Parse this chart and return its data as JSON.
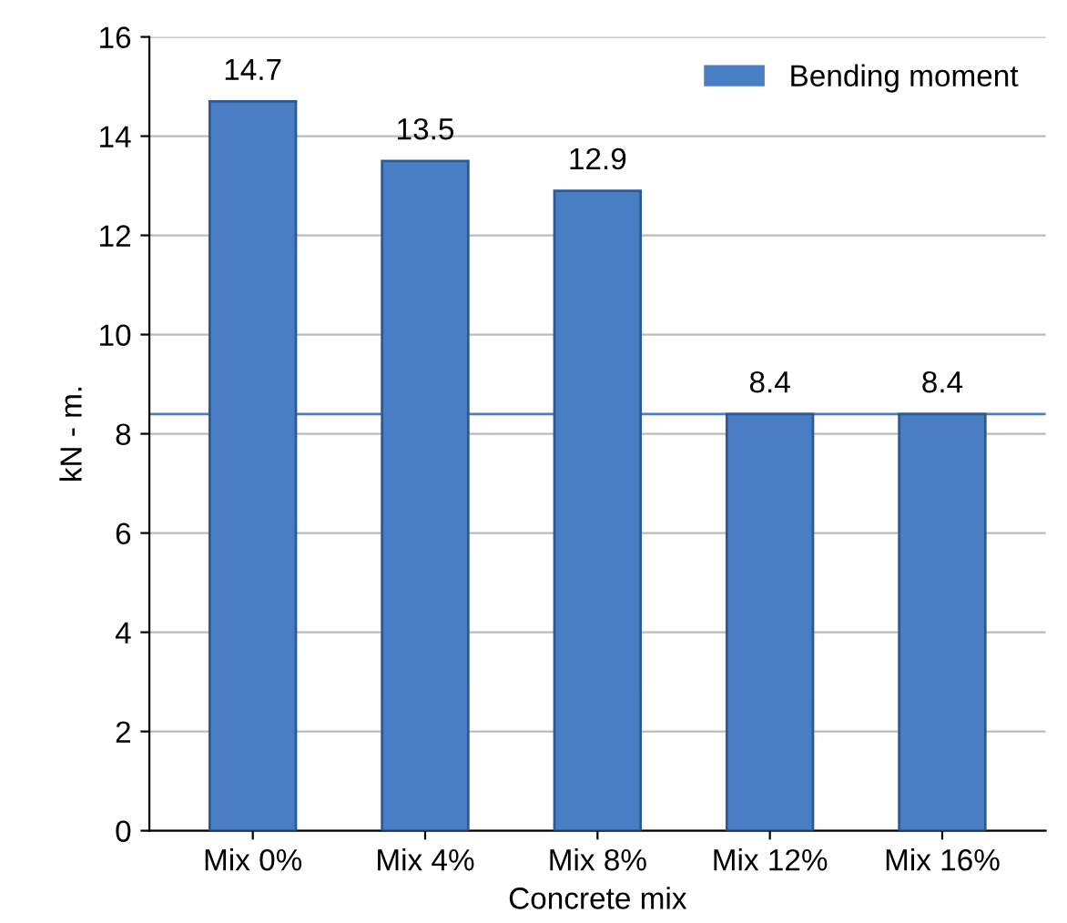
{
  "chart_data": {
    "type": "bar",
    "xlabel": "Concrete mix",
    "ylabel": "kN - m.",
    "categories": [
      "Mix 0%",
      "Mix 4%",
      "Mix 8%",
      "Mix 12%",
      "Mix 16%"
    ],
    "series": [
      {
        "name": "Bending moment",
        "color": "#4a7ec4",
        "values": [
          14.7,
          13.5,
          12.9,
          8.4,
          8.4
        ]
      }
    ],
    "ylim": [
      0,
      16
    ],
    "yticks": [
      0,
      2,
      4,
      6,
      8,
      10,
      12,
      14,
      16
    ],
    "grid": "y",
    "legend": "top right",
    "data_labels": true,
    "ref_lines": [
      {
        "axis": "y",
        "value": 8.4,
        "color": "#4a7ec4"
      }
    ]
  }
}
